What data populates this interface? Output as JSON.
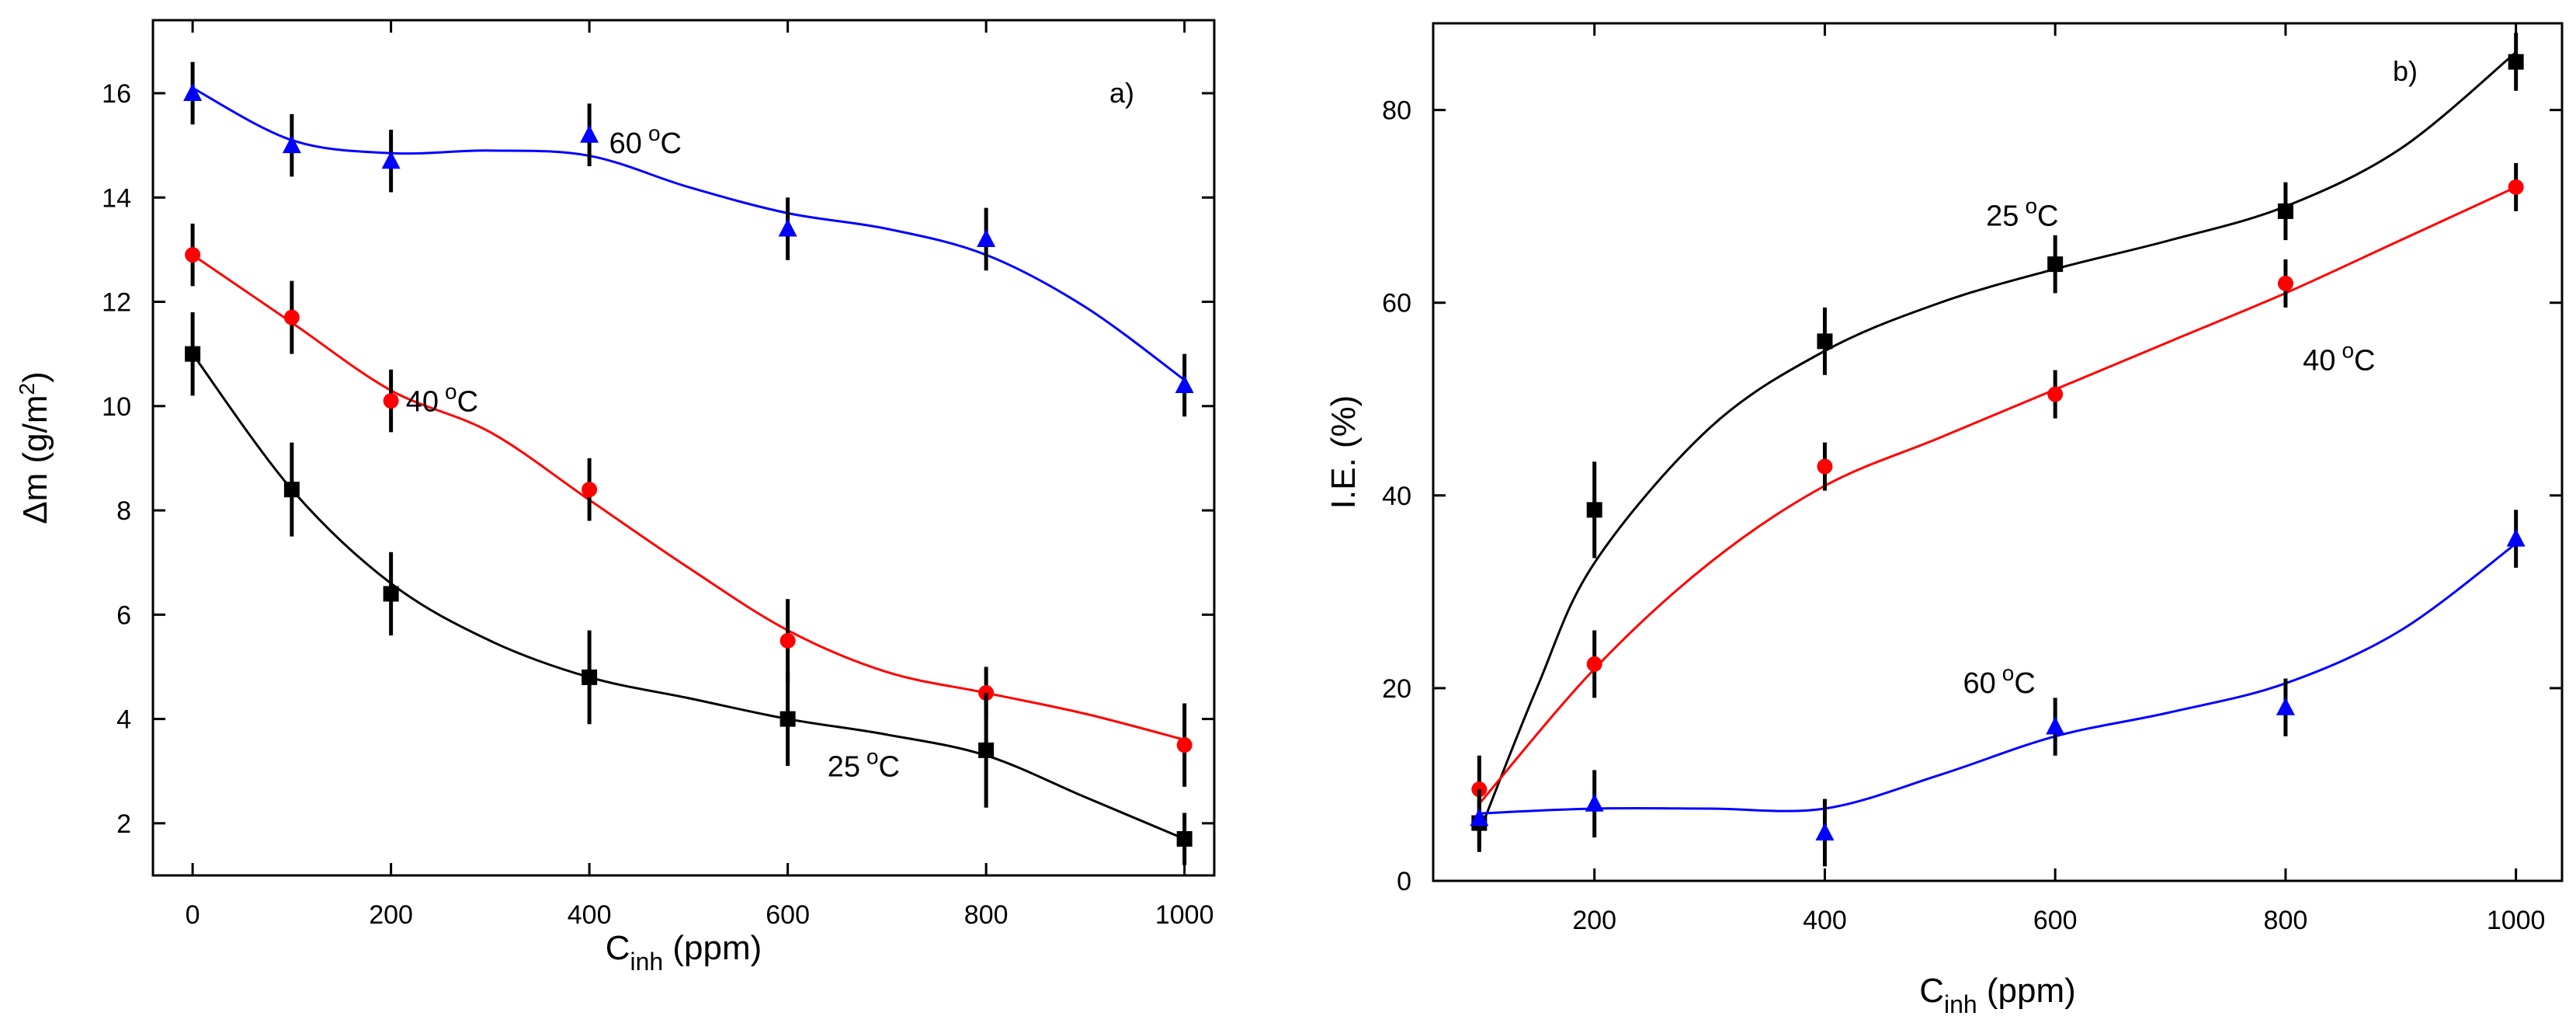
{
  "chart_data": [
    {
      "type": "line",
      "panel_label": "a)",
      "xlabel": "C",
      "xlabel_sub": "inh",
      "xlabel_unit": " (ppm)",
      "ylabel": "Δm (g/m",
      "ylabel_sup": "2",
      "ylabel_close": ")",
      "xlim": [
        -40,
        1030
      ],
      "ylim": [
        1,
        17.4
      ],
      "xticks": [
        0,
        200,
        400,
        600,
        800,
        1000
      ],
      "yticks": [
        2,
        4,
        6,
        8,
        10,
        12,
        14,
        16
      ],
      "series": [
        {
          "name": "60 °C",
          "label_main": "60",
          "label_sup": "o",
          "label_unit": "C",
          "color": "#0000ff",
          "marker": "triangle",
          "x": [
            0,
            100,
            200,
            400,
            600,
            800,
            1000
          ],
          "values": [
            16.0,
            15.0,
            14.7,
            15.2,
            13.4,
            13.2,
            10.4
          ],
          "errors": [
            0.6,
            0.6,
            0.6,
            0.6,
            0.6,
            0.6,
            0.6
          ],
          "fit": [
            [
              0,
              16.1
            ],
            [
              100,
              15.1
            ],
            [
              200,
              14.85
            ],
            [
              300,
              14.9
            ],
            [
              400,
              14.8
            ],
            [
              500,
              14.2
            ],
            [
              600,
              13.7
            ],
            [
              700,
              13.4
            ],
            [
              800,
              12.9
            ],
            [
              900,
              11.9
            ],
            [
              1000,
              10.5
            ]
          ],
          "label_at": [
            420,
            14.85
          ]
        },
        {
          "name": "40 °C",
          "label_main": "40",
          "label_sup": "o",
          "label_unit": "C",
          "color": "#ff0000",
          "marker": "circle",
          "x": [
            0,
            100,
            200,
            400,
            600,
            800,
            1000
          ],
          "values": [
            12.9,
            11.7,
            10.1,
            8.4,
            5.5,
            4.5,
            3.5
          ],
          "errors": [
            0.6,
            0.7,
            0.6,
            0.6,
            0.8,
            0.5,
            0.8
          ],
          "fit": [
            [
              0,
              12.9
            ],
            [
              100,
              11.6
            ],
            [
              200,
              10.3
            ],
            [
              300,
              9.5
            ],
            [
              400,
              8.2
            ],
            [
              500,
              6.9
            ],
            [
              600,
              5.7
            ],
            [
              700,
              4.9
            ],
            [
              800,
              4.5
            ],
            [
              900,
              4.1
            ],
            [
              1000,
              3.6
            ]
          ],
          "label_at": [
            215,
            9.9
          ]
        },
        {
          "name": "25 °C",
          "label_main": "25",
          "label_sup": "o",
          "label_unit": "C",
          "color": "#000000",
          "marker": "square",
          "x": [
            0,
            100,
            200,
            400,
            600,
            800,
            1000
          ],
          "values": [
            11.0,
            8.4,
            6.4,
            4.8,
            4.0,
            3.4,
            1.7
          ],
          "errors": [
            0.8,
            0.9,
            0.8,
            0.9,
            0.9,
            1.1,
            0.5
          ],
          "fit": [
            [
              0,
              11.0
            ],
            [
              100,
              8.4
            ],
            [
              200,
              6.6
            ],
            [
              300,
              5.5
            ],
            [
              400,
              4.8
            ],
            [
              500,
              4.4
            ],
            [
              600,
              4.0
            ],
            [
              700,
              3.7
            ],
            [
              800,
              3.3
            ],
            [
              900,
              2.5
            ],
            [
              1000,
              1.7
            ]
          ],
          "label_at": [
            640,
            2.9
          ]
        }
      ]
    },
    {
      "type": "line",
      "panel_label": "b)",
      "xlabel": "C",
      "xlabel_sub": "inh",
      "xlabel_unit": " (ppm)",
      "ylabel": "I.E. (%)",
      "xlim": [
        60,
        1040
      ],
      "ylim": [
        0,
        89
      ],
      "xticks": [
        200,
        400,
        600,
        800,
        1000
      ],
      "yticks": [
        0,
        20,
        40,
        60,
        80
      ],
      "series": [
        {
          "name": "25 °C",
          "label_main": "25",
          "label_sup": "o",
          "label_unit": "C",
          "color": "#000000",
          "marker": "square",
          "x": [
            100,
            200,
            400,
            600,
            800,
            1000
          ],
          "values": [
            6,
            38.5,
            56,
            64,
            69.5,
            85
          ],
          "errors": [
            3,
            5,
            3.5,
            3,
            3,
            3
          ],
          "fit": [
            [
              100,
              5
            ],
            [
              150,
              20
            ],
            [
              200,
              33
            ],
            [
              300,
              47
            ],
            [
              400,
              55
            ],
            [
              500,
              60
            ],
            [
              600,
              63.5
            ],
            [
              700,
              66.5
            ],
            [
              800,
              70
            ],
            [
              900,
              76
            ],
            [
              1000,
              86
            ]
          ],
          "label_at": [
            540,
            68
          ]
        },
        {
          "name": "40 °C",
          "label_main": "40",
          "label_sup": "o",
          "label_unit": "C",
          "color": "#ff0000",
          "marker": "circle",
          "x": [
            100,
            200,
            400,
            600,
            800,
            1000
          ],
          "values": [
            9.5,
            22.5,
            43,
            50.5,
            62,
            72
          ],
          "errors": [
            3.5,
            3.5,
            2.5,
            2.5,
            2.5,
            2.5
          ],
          "fit": [
            [
              100,
              8
            ],
            [
              200,
              22
            ],
            [
              300,
              33
            ],
            [
              400,
              41
            ],
            [
              500,
              46
            ],
            [
              600,
              51
            ],
            [
              700,
              56
            ],
            [
              800,
              61
            ],
            [
              900,
              66.5
            ],
            [
              1000,
              72
            ]
          ],
          "label_at": [
            815,
            53
          ]
        },
        {
          "name": "60 °C",
          "label_main": "60",
          "label_sup": "o",
          "label_unit": "C",
          "color": "#0000ff",
          "marker": "triangle",
          "x": [
            100,
            200,
            400,
            600,
            800,
            1000
          ],
          "values": [
            6.5,
            8,
            5,
            16,
            18,
            35.5
          ],
          "errors": [
            3,
            3.5,
            3.5,
            3,
            3,
            3
          ],
          "fit": [
            [
              100,
              7
            ],
            [
              200,
              7.5
            ],
            [
              300,
              7.5
            ],
            [
              400,
              7.5
            ],
            [
              500,
              11
            ],
            [
              600,
              15
            ],
            [
              700,
              17.5
            ],
            [
              800,
              20.5
            ],
            [
              900,
              26
            ],
            [
              1000,
              35
            ]
          ],
          "label_at": [
            520,
            19.5
          ]
        }
      ]
    }
  ]
}
